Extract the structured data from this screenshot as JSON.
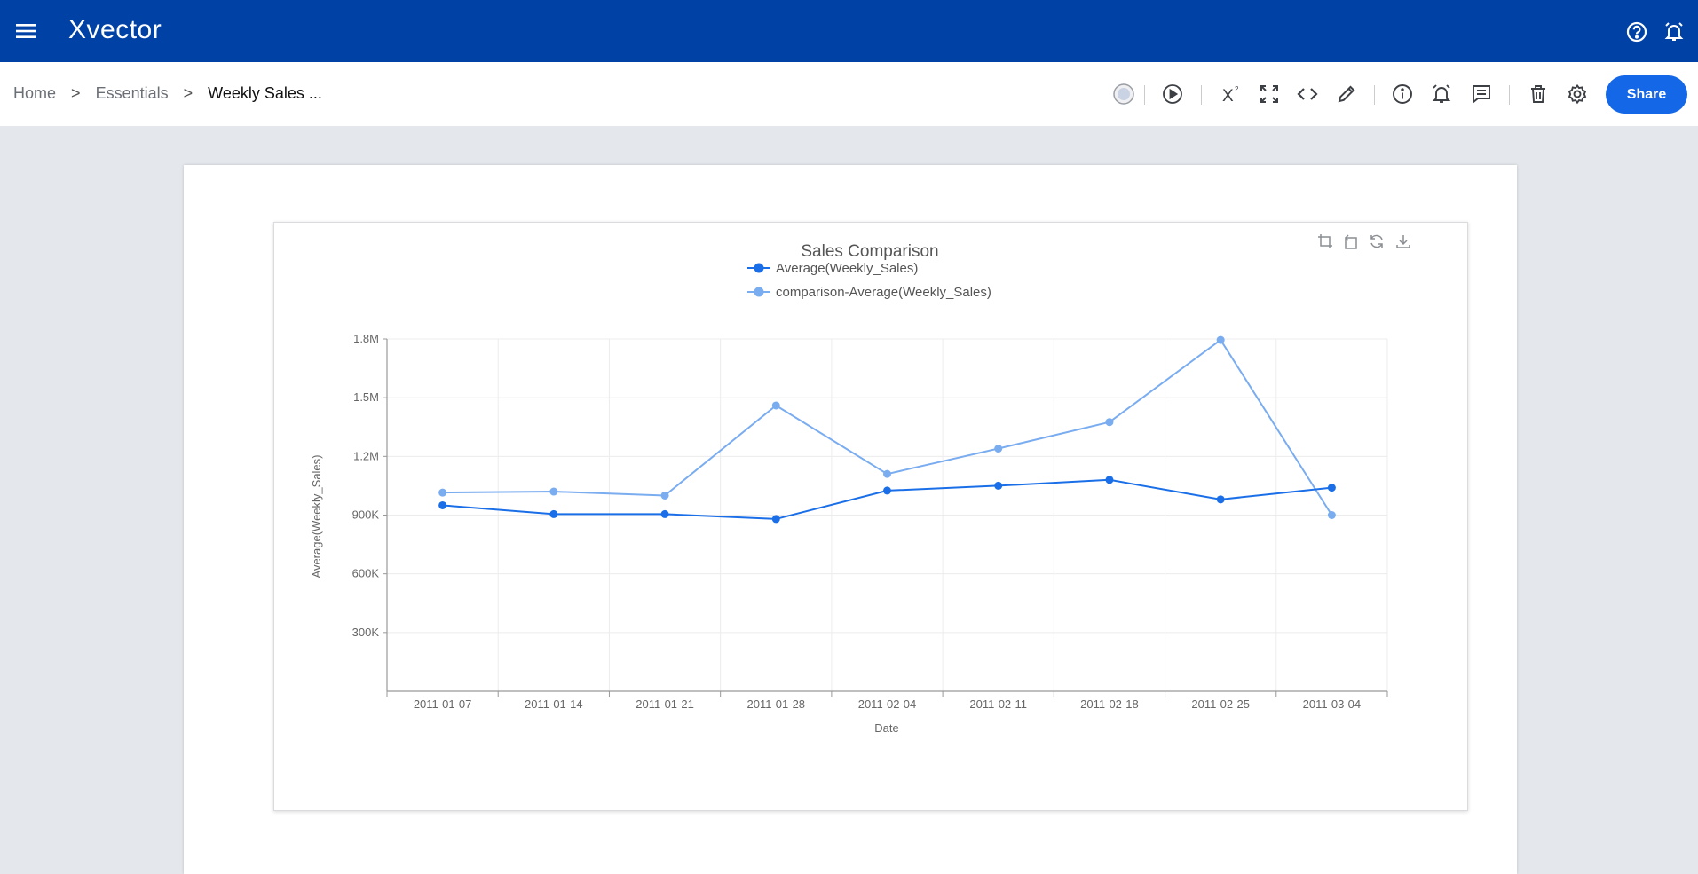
{
  "app": {
    "name": "Xvector"
  },
  "icons": {
    "menu": "hamburger-menu-icon",
    "help": "help-circle-icon",
    "alerts": "bell-alert-icon"
  },
  "breadcrumb": {
    "items": [
      "Home",
      "Essentials",
      "Weekly Sales ..."
    ],
    "separator": ">"
  },
  "toolbar": {
    "icons": [
      "status-icon",
      "play-icon",
      "formula-icon",
      "fullscreen-icon",
      "code-icon",
      "edit-icon",
      "info-icon",
      "alarm-icon",
      "comment-icon",
      "delete-icon",
      "settings-icon"
    ],
    "share_label": "Share"
  },
  "chart_tools": [
    "crop-icon",
    "undo-icon",
    "refresh-icon",
    "download-icon"
  ],
  "colors": {
    "header_bg": "#0041a5",
    "accent": "#1467e6",
    "series_primary": "#1a6fe8",
    "series_comparison": "#7aacf0"
  },
  "chart_data": {
    "type": "line",
    "title": "Sales Comparison",
    "xlabel": "Date",
    "ylabel": "Average(Weekly_Sales)",
    "categories": [
      "2011-01-07",
      "2011-01-14",
      "2011-01-21",
      "2011-01-28",
      "2011-02-04",
      "2011-02-11",
      "2011-02-18",
      "2011-02-25",
      "2011-03-04"
    ],
    "ylim": [
      0,
      1800000
    ],
    "yticks": [
      300000,
      600000,
      900000,
      1200000,
      1500000,
      1800000
    ],
    "ytick_labels": [
      "300K",
      "600K",
      "900K",
      "1.2M",
      "1.5M",
      "1.8M"
    ],
    "grid": true,
    "legend_position": "top-center",
    "series": [
      {
        "name": "Average(Weekly_Sales)",
        "values": [
          950000,
          905000,
          905000,
          880000,
          1025000,
          1050000,
          1080000,
          980000,
          1040000
        ]
      },
      {
        "name": "comparison-Average(Weekly_Sales)",
        "values": [
          1015000,
          1020000,
          1000000,
          1460000,
          1110000,
          1240000,
          1375000,
          1795000,
          900000
        ]
      }
    ]
  }
}
